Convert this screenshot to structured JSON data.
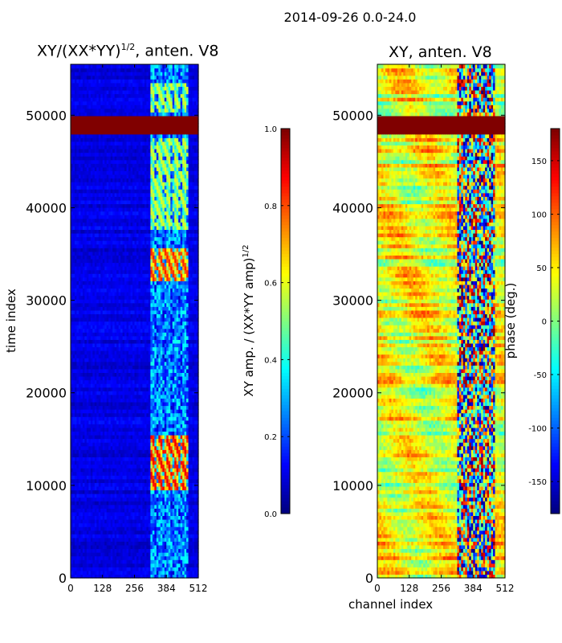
{
  "chart_data": [
    {
      "type": "heatmap",
      "suptitle": "2014-09-26 0.0-24.0",
      "title": "XY/(XX*YY)",
      "title_sup": "1/2",
      "title_suffix": ", anten. V8",
      "ylabel": "time index",
      "xlabel": "",
      "xlim": [
        0,
        512
      ],
      "ylim": [
        0,
        55500
      ],
      "xticks": [
        "0",
        "128",
        "256",
        "384",
        "512"
      ],
      "yticks": [
        "0",
        "10000",
        "20000",
        "30000",
        "40000",
        "50000"
      ],
      "colorbar": {
        "label": "XY amp. / (XX*YY amp)",
        "label_sup": "1/2",
        "range": [
          0.0,
          1.0
        ],
        "ticks": [
          "0.0",
          "0.2",
          "0.4",
          "0.6",
          "0.8",
          "1.0"
        ]
      },
      "features": {
        "saturated_band_time": [
          48000,
          50000
        ],
        "background_level": 0.1,
        "active_channel_range": [
          320,
          470
        ],
        "bright_blocks": [
          {
            "t0": 9500,
            "t1": 15500,
            "level": 0.9
          },
          {
            "t0": 32000,
            "t1": 35500,
            "level": 0.85
          },
          {
            "t0": 37500,
            "t1": 47500,
            "level": 0.6
          },
          {
            "t0": 50500,
            "t1": 53500,
            "level": 0.6
          }
        ]
      }
    },
    {
      "type": "heatmap",
      "title": "XY, anten. V8",
      "xlabel": "channel index",
      "ylabel": "",
      "xlim": [
        0,
        512
      ],
      "ylim": [
        0,
        55500
      ],
      "xticks": [
        "0",
        "128",
        "256",
        "384",
        "512"
      ],
      "yticks": [
        "0",
        "10000",
        "20000",
        "30000",
        "40000",
        "50000"
      ],
      "colorbar": {
        "label": "phase (deg.)",
        "range": [
          -180,
          180
        ],
        "ticks": [
          "-150",
          "-100",
          "-50",
          "0",
          "50",
          "100",
          "150"
        ]
      },
      "features": {
        "saturated_band_time": [
          48000,
          50000
        ],
        "background_phase_deg": 40,
        "active_channel_range": [
          320,
          470
        ]
      }
    }
  ]
}
